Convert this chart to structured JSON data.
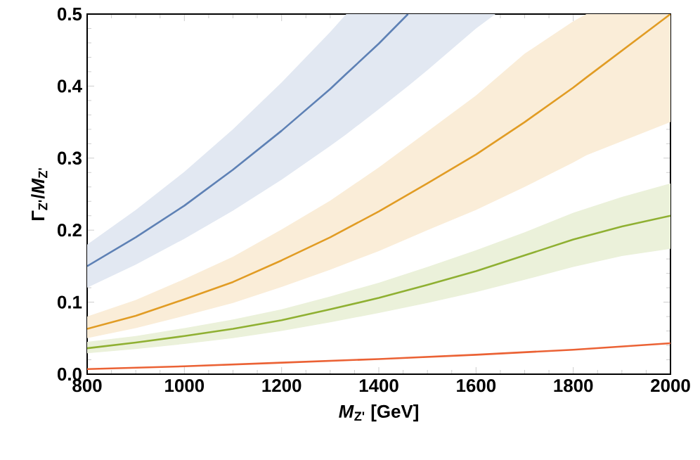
{
  "chart_data": {
    "type": "line",
    "xlabel": "*M*$_{Z'}$ [GeV]",
    "ylabel": "Γ$_{Z'}$/*M*$_{Z'}$",
    "xlim": [
      800,
      2000
    ],
    "ylim": [
      0,
      0.5
    ],
    "xticks": [
      800,
      1000,
      1200,
      1400,
      1600,
      1800,
      2000
    ],
    "yticks": [
      {
        "value": 0,
        "label": "0.0"
      },
      0.1,
      0.2,
      0.3,
      0.4,
      0.5
    ],
    "grid": false,
    "marker": "none",
    "line_style": "solid",
    "series": [
      {
        "color": "#5e81b5",
        "x": [
          800,
          900,
          1000,
          1100,
          1200,
          1300,
          1333,
          1400,
          1460,
          1500,
          1600,
          1640
        ],
        "values": [
          0.15,
          0.19,
          0.234,
          0.284,
          0.338,
          0.396,
          0.417,
          0.459,
          0.5,
          null,
          null,
          null
        ],
        "lower": [
          0.12,
          0.152,
          0.188,
          0.227,
          0.27,
          0.317,
          0.333,
          0.368,
          0.4,
          0.422,
          0.48,
          0.5
        ],
        "upper": [
          0.18,
          0.228,
          0.281,
          0.34,
          0.405,
          0.475,
          0.5,
          0.5,
          0.5,
          0.5,
          0.5,
          0.5
        ]
      },
      {
        "color": "#e19c24",
        "x": [
          800,
          900,
          1000,
          1100,
          1200,
          1300,
          1400,
          1500,
          1600,
          1700,
          1800,
          1827,
          2000
        ],
        "values": [
          0.063,
          0.081,
          0.104,
          0.128,
          0.158,
          0.19,
          0.226,
          0.265,
          0.305,
          0.35,
          0.398,
          0.412,
          0.5
        ],
        "lower": [
          0.05,
          0.064,
          0.081,
          0.099,
          0.121,
          0.145,
          0.171,
          0.2,
          0.228,
          0.26,
          0.294,
          0.304,
          0.35
        ],
        "upper": [
          0.08,
          0.103,
          0.132,
          0.163,
          0.201,
          0.241,
          0.287,
          0.337,
          0.387,
          0.445,
          0.49,
          0.5,
          0.5
        ]
      },
      {
        "color": "#8fb032",
        "x": [
          800,
          900,
          1000,
          1100,
          1200,
          1300,
          1400,
          1500,
          1600,
          1700,
          1800,
          1900,
          2000
        ],
        "values": [
          0.036,
          0.044,
          0.053,
          0.063,
          0.075,
          0.09,
          0.106,
          0.124,
          0.143,
          0.165,
          0.187,
          0.205,
          0.22
        ],
        "lower": [
          0.029,
          0.035,
          0.042,
          0.05,
          0.06,
          0.072,
          0.085,
          0.099,
          0.114,
          0.131,
          0.149,
          0.164,
          0.174
        ],
        "upper": [
          0.045,
          0.053,
          0.064,
          0.076,
          0.09,
          0.108,
          0.127,
          0.149,
          0.172,
          0.197,
          0.224,
          0.246,
          0.265
        ]
      },
      {
        "color": "#eb6235",
        "x": [
          800,
          1000,
          1200,
          1400,
          1600,
          1800,
          2000
        ],
        "values": [
          0.007,
          0.011,
          0.016,
          0.021,
          0.027,
          0.034,
          0.043
        ]
      }
    ]
  }
}
